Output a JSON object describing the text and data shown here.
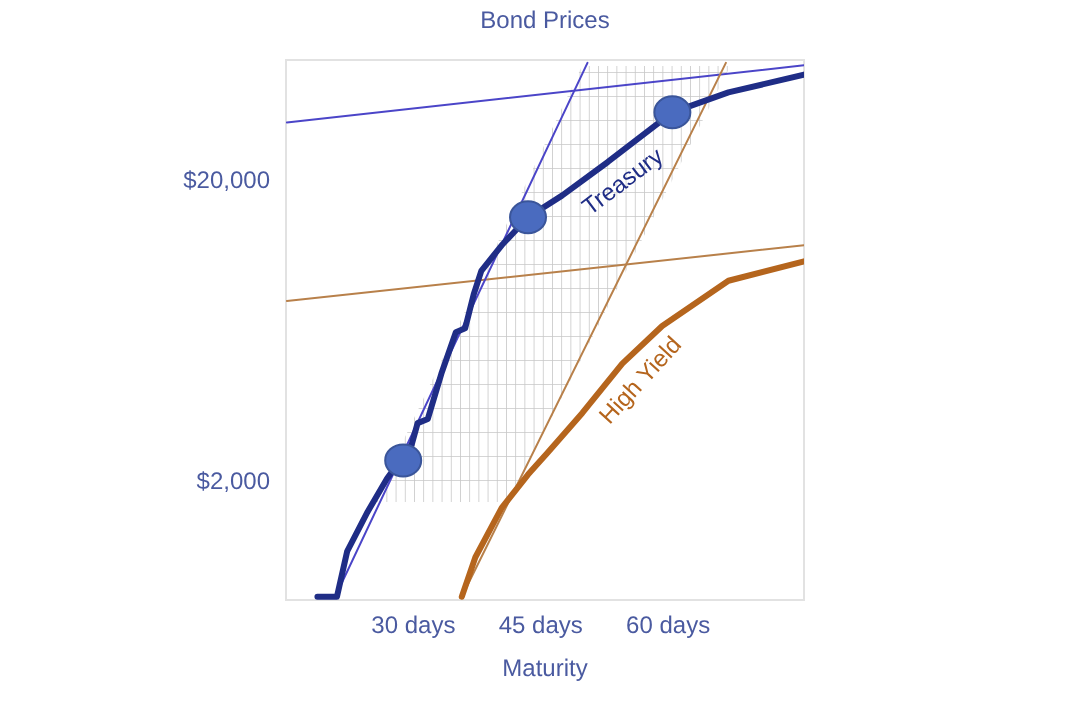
{
  "chart_data": {
    "type": "line",
    "title": "Bond Prices",
    "xlabel": "Maturity",
    "log": "y",
    "line_style": "solid",
    "xlim": [
      15,
      76
    ],
    "ylim": [
      800,
      50000
    ],
    "xticks": [
      {
        "value": 30,
        "label": "30 days"
      },
      {
        "value": 45,
        "label": "45 days"
      },
      {
        "value": 60,
        "label": "60 days"
      }
    ],
    "yticks": [
      {
        "value": 2000,
        "label": "$2,000"
      },
      {
        "value": 20000,
        "label": "$20,000"
      }
    ],
    "series": [
      {
        "x": [
          15.1,
          76
        ],
        "values": [
          31000,
          48000
        ],
        "color": "#4b45c8"
      },
      {
        "x": [
          15.1,
          76
        ],
        "values": [
          7900,
          12100
        ],
        "color": "#b8804a"
      },
      {
        "x": [
          20.8,
          50.5
        ],
        "values": [
          820,
          48900
        ],
        "color": "#4b45c8"
      },
      {
        "x": [
          35.7,
          66.8
        ],
        "values": [
          820,
          48900
        ],
        "color": "#b8804a"
      },
      {
        "name": "Treasury",
        "x": [
          18.7,
          21,
          22.2,
          24.6,
          26.9,
          29.8,
          30.5,
          31.7,
          33.3,
          35,
          36.1,
          37.1,
          38,
          40.4,
          43.5,
          47.5,
          52.9,
          60.5,
          67.1,
          76
        ],
        "values": [
          820,
          820,
          1160,
          1570,
          2030,
          2630,
          3100,
          3200,
          4530,
          6220,
          6410,
          8300,
          9950,
          12100,
          15000,
          17700,
          22900,
          33500,
          39000,
          44700
        ],
        "color": "#1f2d86"
      },
      {
        "name": "High Yield",
        "x": [
          35.7,
          37.3,
          40.4,
          43.5,
          45.8,
          49.9,
          54.6,
          59.3,
          67.1,
          76
        ],
        "values": [
          820,
          1110,
          1620,
          2090,
          2470,
          3350,
          4890,
          6520,
          9220,
          10700
        ],
        "color": "#b5651d"
      },
      {
        "type": "scatter",
        "marker": "circle",
        "x": [
          28.8,
          43.5,
          60.5
        ],
        "values": [
          2330,
          15000,
          33500
        ],
        "color": "#4a6bbf"
      }
    ]
  }
}
